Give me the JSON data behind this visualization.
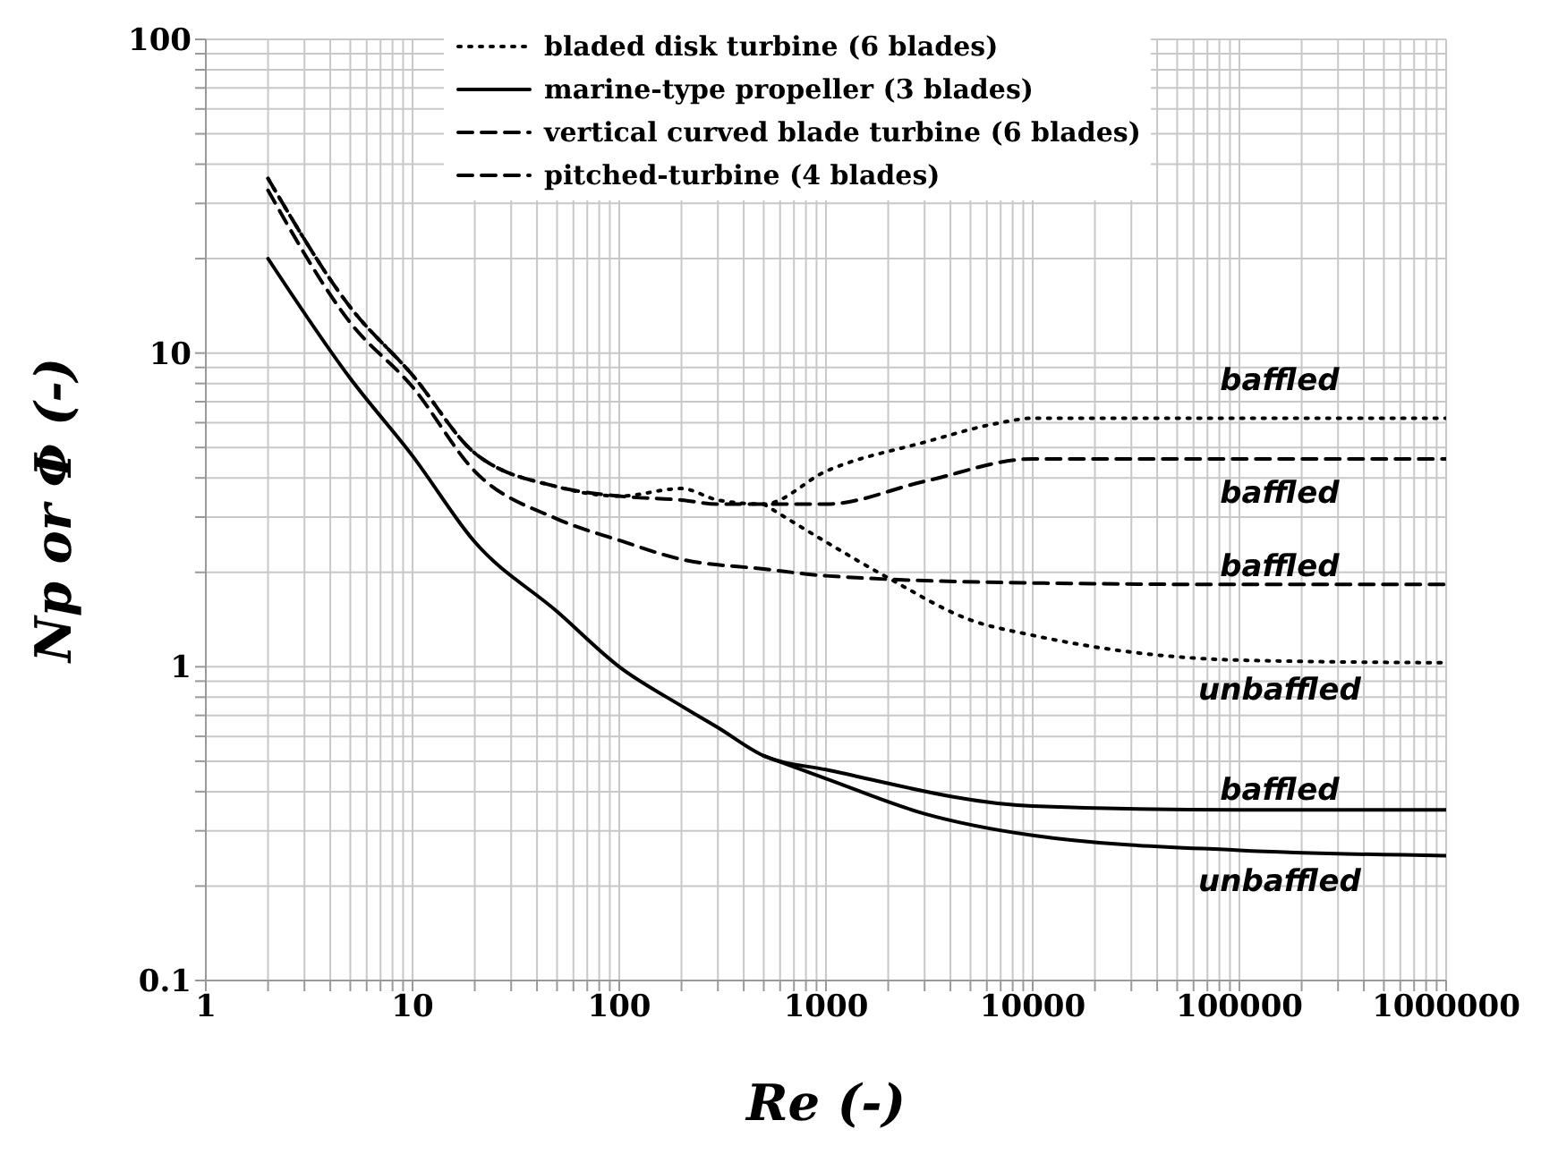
{
  "chart_data": {
    "type": "line",
    "xlabel": "Re  (-)",
    "ylabel": "Np  or  Φ (-)",
    "log": "xy",
    "grid": true,
    "legend": "top",
    "marker": "none",
    "xlim": [
      1,
      1000000
    ],
    "ylim": [
      0.1,
      100
    ],
    "xticks": [
      1,
      {
        "value": 2,
        "label": null
      },
      {
        "value": 3,
        "label": null
      },
      {
        "value": 4,
        "label": null
      },
      {
        "value": 5,
        "label": null
      },
      {
        "value": 6,
        "label": null
      },
      {
        "value": 7,
        "label": null
      },
      {
        "value": 8,
        "label": null
      },
      {
        "value": 9,
        "label": null
      },
      10,
      {
        "value": 20,
        "label": null
      },
      {
        "value": 30,
        "label": null
      },
      {
        "value": 40,
        "label": null
      },
      {
        "value": 50,
        "label": null
      },
      {
        "value": 60,
        "label": null
      },
      {
        "value": 70,
        "label": null
      },
      {
        "value": 80,
        "label": null
      },
      {
        "value": 90,
        "label": null
      },
      100,
      {
        "value": 200,
        "label": null
      },
      {
        "value": 300,
        "label": null
      },
      {
        "value": 400,
        "label": null
      },
      {
        "value": 500,
        "label": null
      },
      {
        "value": 600,
        "label": null
      },
      {
        "value": 700,
        "label": null
      },
      {
        "value": 800,
        "label": null
      },
      {
        "value": 900,
        "label": null
      },
      1000,
      {
        "value": 2000,
        "label": null
      },
      {
        "value": 3000,
        "label": null
      },
      {
        "value": 4000,
        "label": null
      },
      {
        "value": 5000,
        "label": null
      },
      {
        "value": 6000,
        "label": null
      },
      {
        "value": 7000,
        "label": null
      },
      {
        "value": 8000,
        "label": null
      },
      {
        "value": 9000,
        "label": null
      },
      10000,
      {
        "value": 20000,
        "label": null
      },
      {
        "value": 30000,
        "label": null
      },
      {
        "value": 40000,
        "label": null
      },
      {
        "value": 50000,
        "label": null
      },
      {
        "value": 60000,
        "label": null
      },
      {
        "value": 70000,
        "label": null
      },
      {
        "value": 80000,
        "label": null
      },
      {
        "value": 90000,
        "label": null
      },
      100000,
      {
        "value": 200000,
        "label": null
      },
      {
        "value": 300000,
        "label": null
      },
      {
        "value": 400000,
        "label": null
      },
      {
        "value": 500000,
        "label": null
      },
      {
        "value": 600000,
        "label": null
      },
      {
        "value": 700000,
        "label": null
      },
      {
        "value": 800000,
        "label": null
      },
      {
        "value": 900000,
        "label": null
      },
      1000000
    ],
    "yticks": [
      0.1,
      {
        "value": 0.2,
        "label": null
      },
      {
        "value": 0.3,
        "label": null
      },
      {
        "value": 0.4,
        "label": null
      },
      {
        "value": 0.5,
        "label": null
      },
      {
        "value": 0.6,
        "label": null
      },
      {
        "value": 0.7,
        "label": null
      },
      {
        "value": 0.8,
        "label": null
      },
      {
        "value": 0.9,
        "label": null
      },
      1,
      {
        "value": 2,
        "label": null
      },
      {
        "value": 3,
        "label": null
      },
      {
        "value": 4,
        "label": null
      },
      {
        "value": 5,
        "label": null
      },
      {
        "value": 6,
        "label": null
      },
      {
        "value": 7,
        "label": null
      },
      {
        "value": 8,
        "label": null
      },
      {
        "value": 9,
        "label": null
      },
      10,
      {
        "value": 20,
        "label": null
      },
      {
        "value": 30,
        "label": null
      },
      {
        "value": 40,
        "label": null
      },
      {
        "value": 50,
        "label": null
      },
      {
        "value": 60,
        "label": null
      },
      {
        "value": 70,
        "label": null
      },
      {
        "value": 80,
        "label": null
      },
      {
        "value": 90,
        "label": null
      },
      100
    ],
    "series": [
      {
        "name": "bladed disk turbine (6 blades)",
        "color": "#000000",
        "line_style": "dotted",
        "x": [
          2,
          5,
          10,
          20,
          50,
          100,
          200,
          300,
          500,
          1000,
          3000,
          7000,
          10000,
          100000,
          1000000
        ],
        "values": [
          36,
          14,
          8.5,
          4.8,
          3.75,
          3.5,
          3.7,
          3.4,
          3.3,
          4.2,
          5.2,
          6.0,
          6.2,
          6.2,
          6.2
        ]
      },
      {
        "name": "marine-type propeller (3 blades)",
        "color": "#000000",
        "line_style": "solid",
        "x": [
          2,
          5,
          10,
          20,
          50,
          100,
          200,
          300,
          500,
          1000,
          10000,
          100000,
          1000000
        ],
        "values": [
          20,
          8.3,
          4.7,
          2.5,
          1.5,
          1.0,
          0.75,
          0.64,
          0.52,
          0.47,
          0.36,
          0.35,
          0.35
        ]
      },
      {
        "name": "vertical curved blade turbine (6 blades)",
        "color": "#000000",
        "line_style": "dashed",
        "x": [
          2,
          5,
          10,
          20,
          50,
          100,
          200,
          300,
          500,
          1000,
          3000,
          10000,
          100000,
          1000000
        ],
        "values": [
          36,
          14,
          8.5,
          4.8,
          3.75,
          3.5,
          3.4,
          3.3,
          3.3,
          3.3,
          3.9,
          4.6,
          4.6,
          4.6
        ]
      },
      {
        "name": "pitched-turbine (4 blades)",
        "color": "#000000",
        "line_style": "dashed",
        "x": [
          2,
          5,
          10,
          20,
          50,
          100,
          200,
          500,
          1000,
          10000,
          100000,
          1000000
        ],
        "values": [
          33,
          12.5,
          7.8,
          4.2,
          2.96,
          2.53,
          2.2,
          2.05,
          1.95,
          1.85,
          1.83,
          1.83
        ]
      },
      {
        "color": "#000000",
        "line_style": "dotted",
        "x": [
          500,
          1000,
          2000,
          5000,
          10000,
          100000,
          1000000
        ],
        "values": [
          3.3,
          2.5,
          1.92,
          1.41,
          1.26,
          1.05,
          1.03
        ]
      },
      {
        "color": "#000000",
        "line_style": "solid",
        "x": [
          500,
          1000,
          3000,
          10000,
          100000,
          1000000
        ],
        "values": [
          0.52,
          0.44,
          0.34,
          0.29,
          0.26,
          0.25
        ]
      }
    ],
    "annotations": [
      "baffled",
      "baffled",
      "baffled",
      "unbaffled",
      "baffled",
      "unbaffled"
    ]
  }
}
